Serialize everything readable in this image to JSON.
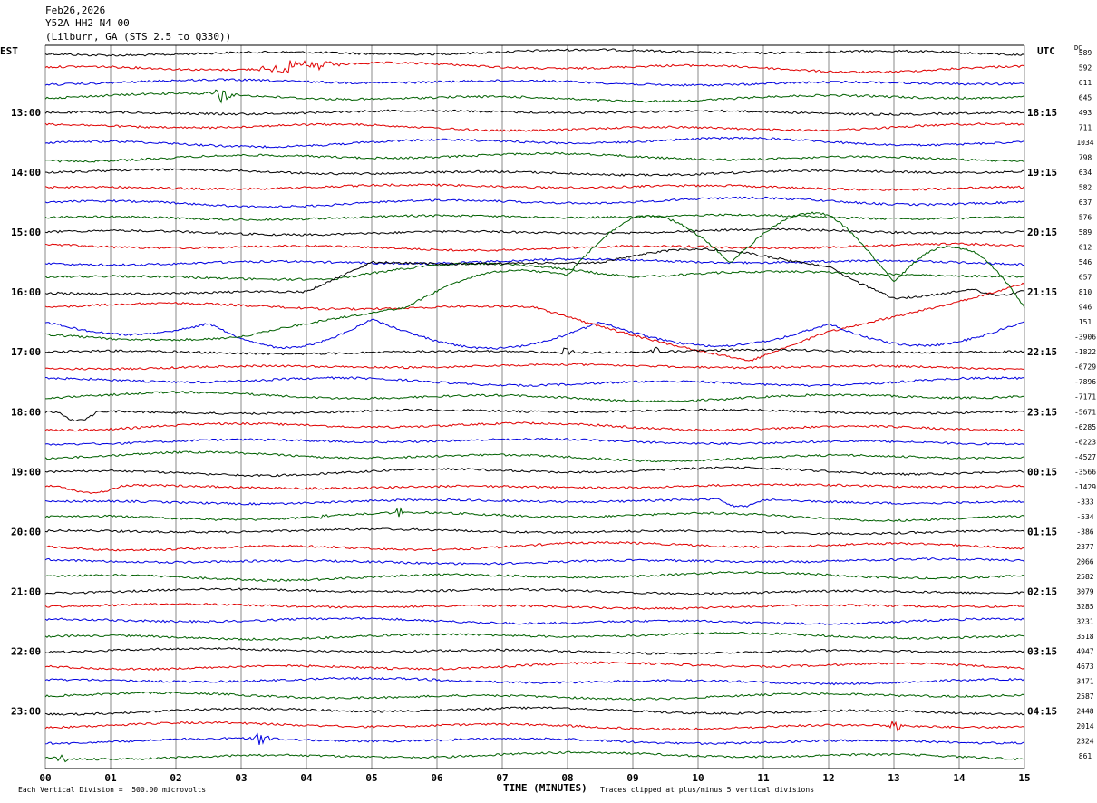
{
  "header": {
    "date": "Feb26,2026",
    "station": "Y52A HH2 N4 00",
    "location": "(Lilburn, GA (STS 2.5 to Q330))"
  },
  "left_timezone": "EST",
  "right_timezone": "UTC",
  "dc_label": "DC",
  "footer": {
    "scale_note": "Each Vertical Division =  500.00 microvolts",
    "clip_note": "Traces clipped at plus/minus 5 vertical divisions",
    "x_axis_title": "TIME (MINUTES)"
  },
  "colors": {
    "trace_cycle": [
      "#000000",
      "#e00000",
      "#0000e0",
      "#006000"
    ],
    "grid": "#888888"
  },
  "chart_data": {
    "type": "line",
    "title": "",
    "x_ticks": [
      "00",
      "01",
      "02",
      "03",
      "04",
      "05",
      "06",
      "07",
      "08",
      "09",
      "10",
      "11",
      "12",
      "13",
      "14",
      "15"
    ],
    "xlim": [
      0,
      15
    ],
    "trace_count": 48,
    "left_hour_labels": [
      {
        "trace": 4,
        "label": "13:00"
      },
      {
        "trace": 8,
        "label": "14:00"
      },
      {
        "trace": 12,
        "label": "15:00"
      },
      {
        "trace": 16,
        "label": "16:00"
      },
      {
        "trace": 20,
        "label": "17:00"
      },
      {
        "trace": 24,
        "label": "18:00"
      },
      {
        "trace": 28,
        "label": "19:00"
      },
      {
        "trace": 32,
        "label": "20:00"
      },
      {
        "trace": 36,
        "label": "21:00"
      },
      {
        "trace": 40,
        "label": "22:00"
      },
      {
        "trace": 44,
        "label": "23:00"
      }
    ],
    "right_hour_labels": [
      {
        "trace": 4,
        "label": "18:15"
      },
      {
        "trace": 8,
        "label": "19:15"
      },
      {
        "trace": 12,
        "label": "20:15"
      },
      {
        "trace": 16,
        "label": "21:15"
      },
      {
        "trace": 20,
        "label": "22:15"
      },
      {
        "trace": 24,
        "label": "23:15"
      },
      {
        "trace": 28,
        "label": "00:15"
      },
      {
        "trace": 32,
        "label": "01:15"
      },
      {
        "trace": 36,
        "label": "02:15"
      },
      {
        "trace": 40,
        "label": "03:15"
      },
      {
        "trace": 44,
        "label": "04:15"
      }
    ],
    "dc_offsets": [
      "589",
      "592",
      "611",
      "645",
      "493",
      "711",
      "1034",
      "798",
      "634",
      "582",
      "637",
      "576",
      "589",
      "612",
      "546",
      "657",
      "810",
      "946",
      "151",
      "-3906",
      "-1822",
      "-6729",
      "-7896",
      "-7171",
      "-5671",
      "-6285",
      "-6223",
      "-4527",
      "-3566",
      "-1429",
      "-333",
      "-534",
      "-386",
      "2377",
      "2066",
      "2582",
      "3079",
      "3285",
      "3231",
      "3518",
      "4947",
      "4673",
      "3471",
      "2587",
      "2448",
      "2014",
      "2324",
      "861"
    ]
  }
}
